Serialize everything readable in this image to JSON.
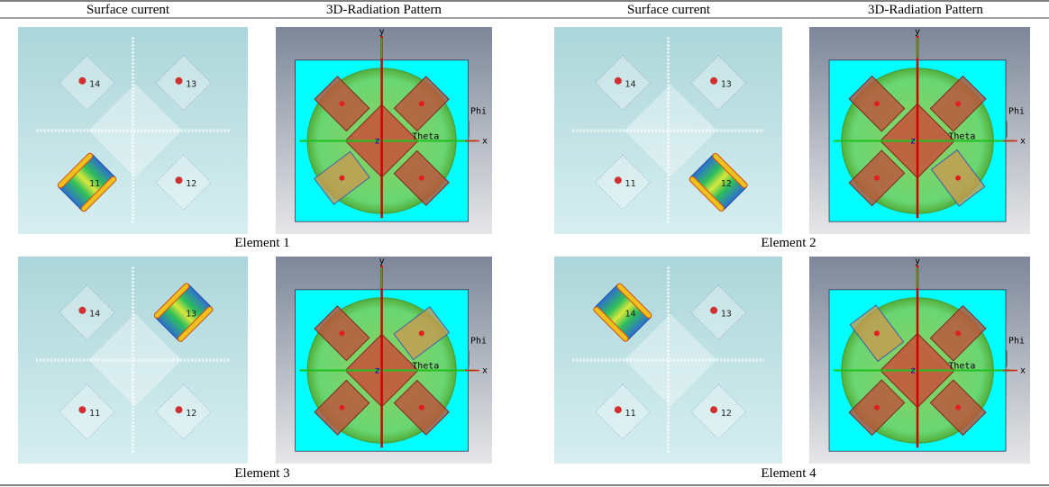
{
  "header": {
    "columns": [
      "Surface current",
      "3D-Radiation Pattern",
      "Surface current",
      "3D-Radiation Pattern"
    ]
  },
  "elements": [
    {
      "caption": "Element 1"
    },
    {
      "caption": "Element 2"
    },
    {
      "caption": "Element 3"
    },
    {
      "caption": "Element 4"
    }
  ],
  "port_labels": [
    "14",
    "13",
    "11",
    "12"
  ],
  "axis_labels": {
    "x": "x",
    "y": "y",
    "z": "z",
    "theta": "Theta",
    "phi": "Phi"
  }
}
